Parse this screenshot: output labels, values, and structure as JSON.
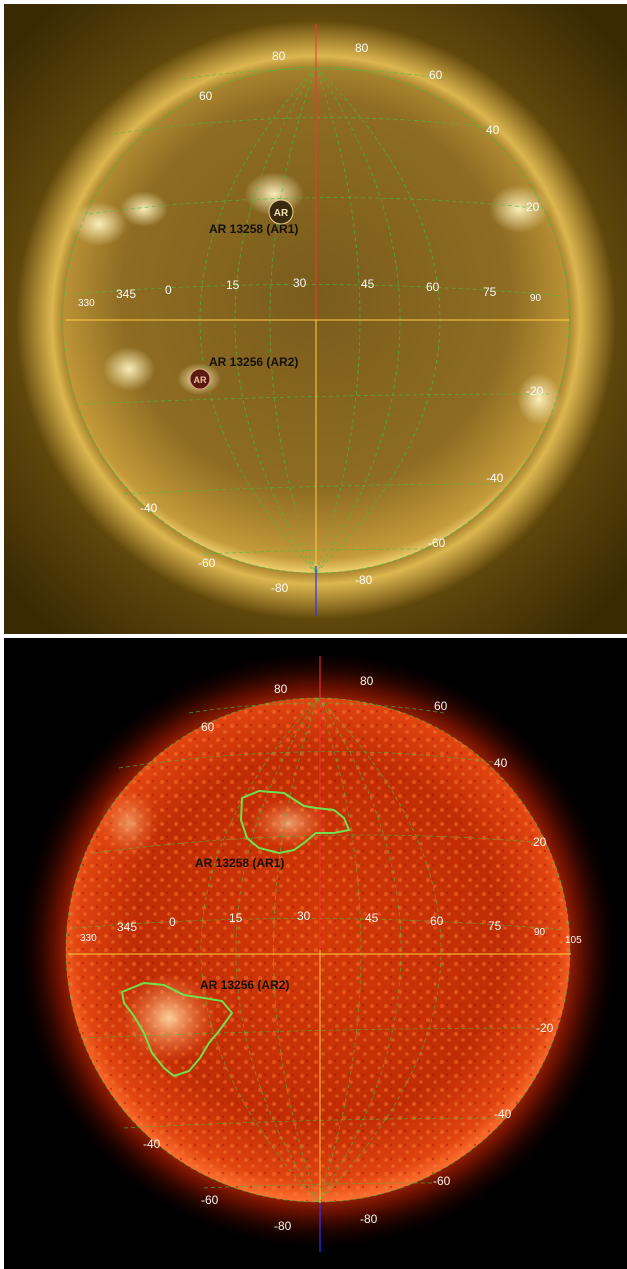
{
  "panels": [
    {
      "id": "top",
      "description_name": "aia-171-view",
      "colors": {
        "background": "#3a2a00",
        "disk_center": "#8a6a1a",
        "disk_edge": "#c8a040",
        "corona": "#e0b040",
        "axis_v_top": "#ff2020",
        "axis_v_bottom": "#3030ff",
        "axis_h": "#ffd040",
        "grid": "#40c040"
      }
    },
    {
      "id": "bottom",
      "description_name": "aia-304-view",
      "colors": {
        "background": "#000000",
        "disk_center": "#c02000",
        "disk_edge": "#ff5020",
        "corona": "#b02000",
        "axis_v_top": "#ff2020",
        "axis_v_bottom": "#3030ff",
        "axis_h": "#ffd040",
        "grid": "#40c040",
        "contour": "#70e050"
      }
    }
  ],
  "labels": {
    "lat_80_a": "80",
    "lat_80_b": "80",
    "lat_60_a": "60",
    "lat_60_b": "60",
    "lat_40_b": "40",
    "lat_20_b": "20",
    "lat_m20": "-20",
    "lat_m40_a": "-40",
    "lat_m40_b": "-40",
    "lat_m60_a": "-60",
    "lat_m60_b": "-60",
    "lat_m80_a": "-80",
    "lat_m80_b": "-80",
    "lon_330": "330",
    "lon_345": "345",
    "lon_0": "0",
    "lon_15": "15",
    "lon_30": "30",
    "lon_45": "45",
    "lon_60": "60",
    "lon_75": "75",
    "lon_90": "90",
    "lon_105": "105",
    "ar1": "AR 13258 (AR1)",
    "ar2": "AR 13256 (AR2)",
    "ar_marker_text": "AR"
  }
}
